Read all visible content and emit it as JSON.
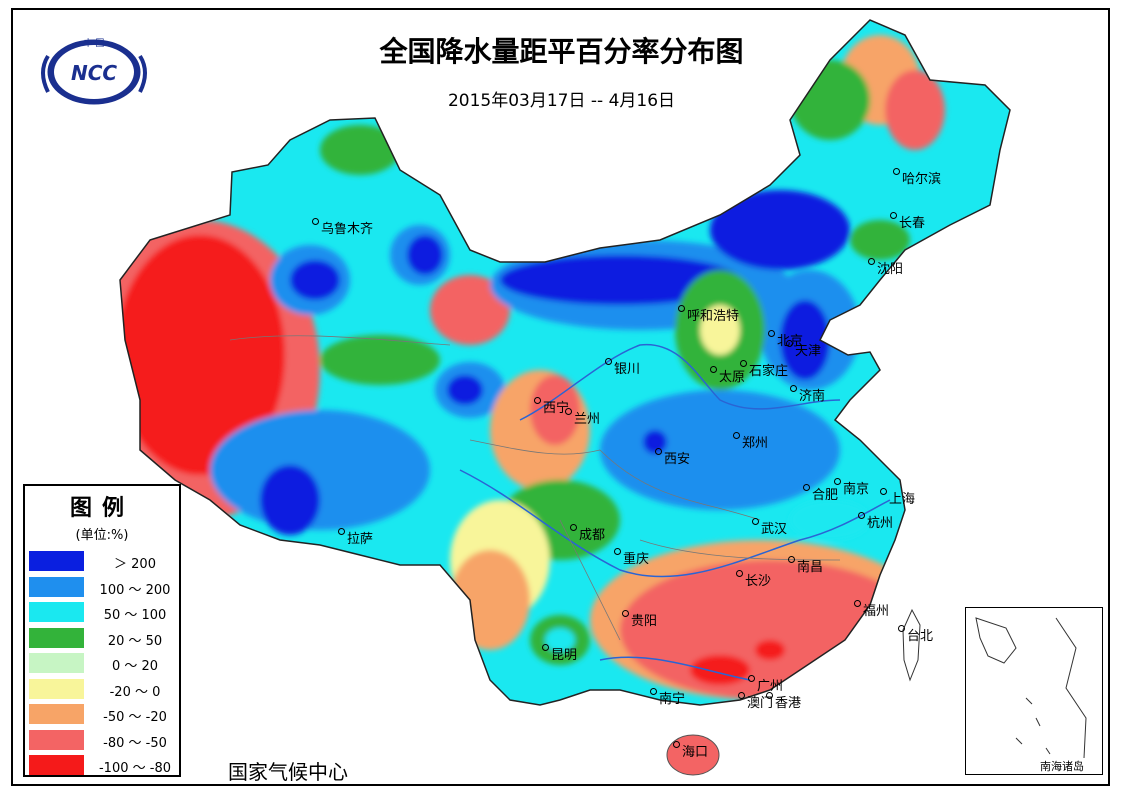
{
  "title": "全国降水量距平百分率分布图",
  "subtitle": "2015年03月17日 -- 4月16日",
  "logo": {
    "top_text": "中 国",
    "brand": "NCC"
  },
  "legend": {
    "title": "图例",
    "unit": "(单位:%)",
    "items": [
      {
        "label": "＞ 200",
        "color": "#0a1fe0"
      },
      {
        "label": "100 ～ 200",
        "color": "#1f8fee"
      },
      {
        "label": "50 ～ 100",
        "color": "#1ae8f0"
      },
      {
        "label": "20 ～ 50",
        "color": "#33b33a"
      },
      {
        "label": "0 ～ 20",
        "color": "#c7f5c4"
      },
      {
        "label": "-20 ～ 0",
        "color": "#f8f59a"
      },
      {
        "label": "-50 ～ -20",
        "color": "#f7a467"
      },
      {
        "label": "-80 ～ -50",
        "color": "#f36464"
      },
      {
        "label": "-100 ～ -80",
        "color": "#f51a1a"
      }
    ]
  },
  "agency": "国家气候中心",
  "inset_label": "南海诸岛",
  "cities": [
    {
      "name": "乌鲁木齐"
    },
    {
      "name": "哈尔滨"
    },
    {
      "name": "长春"
    },
    {
      "name": "沈阳"
    },
    {
      "name": "呼和浩特"
    },
    {
      "name": "北京"
    },
    {
      "name": "天津"
    },
    {
      "name": "银川"
    },
    {
      "name": "太原"
    },
    {
      "name": "石家庄"
    },
    {
      "name": "济南"
    },
    {
      "name": "西宁"
    },
    {
      "name": "兰州"
    },
    {
      "name": "西安"
    },
    {
      "name": "郑州"
    },
    {
      "name": "合肥"
    },
    {
      "name": "南京"
    },
    {
      "name": "上海"
    },
    {
      "name": "杭州"
    },
    {
      "name": "武汉"
    },
    {
      "name": "拉萨"
    },
    {
      "name": "成都"
    },
    {
      "name": "重庆"
    },
    {
      "name": "长沙"
    },
    {
      "name": "南昌"
    },
    {
      "name": "福州"
    },
    {
      "name": "贵阳"
    },
    {
      "name": "台北"
    },
    {
      "name": "昆明"
    },
    {
      "name": "南宁"
    },
    {
      "name": "广州"
    },
    {
      "name": "澳门"
    },
    {
      "name": "香港"
    },
    {
      "name": "海口"
    }
  ]
}
